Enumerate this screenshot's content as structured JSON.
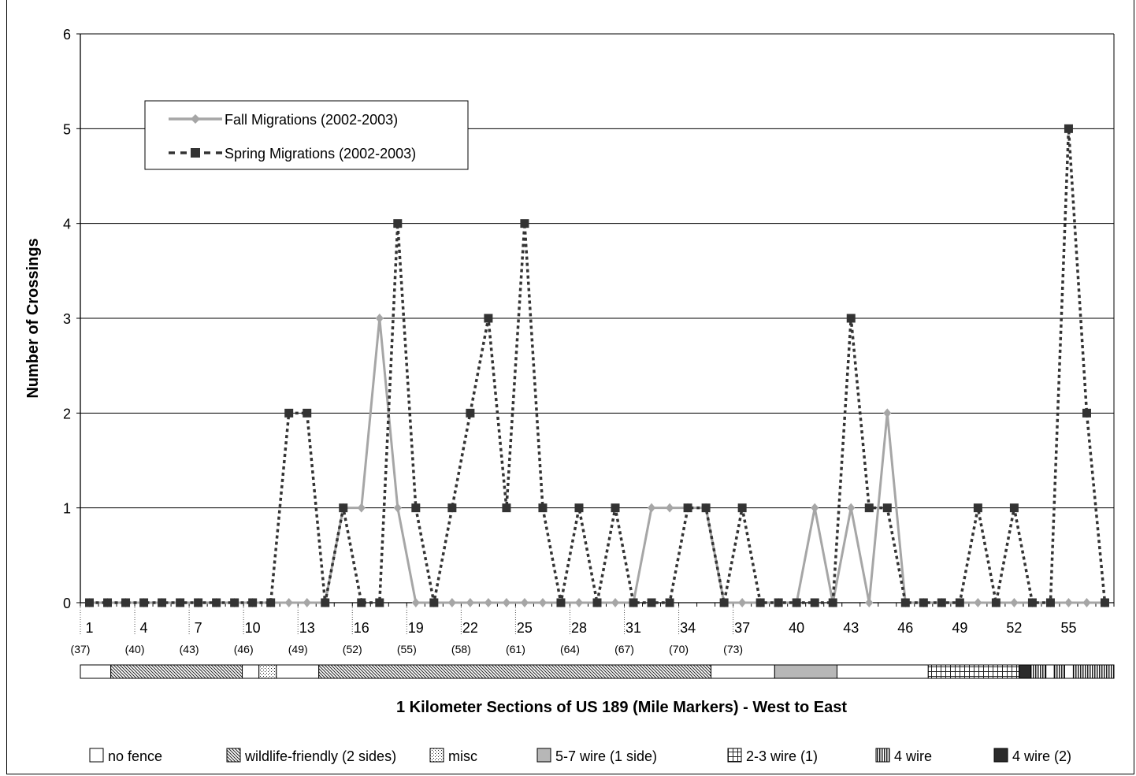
{
  "chart_data": {
    "type": "line",
    "title": "",
    "xlabel": "1 Kilometer Sections of US 189 (Mile Markers) - West to East",
    "ylabel": "Number of Crossings",
    "ylim": [
      0,
      6
    ],
    "yticks": [
      "0",
      "1",
      "2",
      "3",
      "4",
      "5",
      "6"
    ],
    "grid": "horizontal",
    "legend_position": "top-left",
    "x": [
      1,
      2,
      3,
      4,
      5,
      6,
      7,
      8,
      9,
      10,
      11,
      12,
      13,
      14,
      15,
      16,
      17,
      18,
      19,
      20,
      21,
      22,
      23,
      24,
      25,
      26,
      27,
      28,
      29,
      30,
      31,
      32,
      33,
      34,
      35,
      36,
      37,
      38,
      39,
      40,
      41,
      42,
      43,
      44,
      45,
      46,
      47,
      48,
      49,
      50,
      51,
      52,
      53,
      54,
      55,
      56,
      57
    ],
    "xtick_labels": [
      "1",
      "4",
      "7",
      "10",
      "13",
      "16",
      "19",
      "22",
      "25",
      "28",
      "31",
      "34",
      "37",
      "40",
      "43",
      "46",
      "49",
      "52",
      "55"
    ],
    "mile_marker_labels": [
      "(37)",
      "(40)",
      "(43)",
      "(46)",
      "(49)",
      "(52)",
      "(55)",
      "(58)",
      "(61)",
      "(64)",
      "(67)",
      "(70)",
      "(73)"
    ],
    "series": [
      {
        "name": "Fall Migrations (2002-2003)",
        "color": "#a6a6a6",
        "style": "solid",
        "marker": "diamond",
        "values": [
          0,
          0,
          0,
          0,
          0,
          0,
          0,
          0,
          0,
          0,
          0,
          0,
          0,
          0,
          1,
          1,
          3,
          1,
          0,
          0,
          0,
          0,
          0,
          0,
          0,
          0,
          0,
          0,
          0,
          0,
          0,
          1,
          1,
          1,
          1,
          0,
          0,
          0,
          0,
          0,
          1,
          0,
          1,
          0,
          2,
          0,
          0,
          0,
          0,
          0,
          0,
          0,
          0,
          0,
          0,
          0,
          0
        ]
      },
      {
        "name": "Spring Migrations (2002-2003)",
        "color": "#333333",
        "style": "dotted",
        "marker": "square",
        "values": [
          0,
          0,
          0,
          0,
          0,
          0,
          0,
          0,
          0,
          0,
          0,
          2,
          2,
          0,
          1,
          0,
          0,
          4,
          1,
          0,
          1,
          2,
          3,
          1,
          4,
          1,
          0,
          1,
          0,
          1,
          0,
          0,
          0,
          1,
          1,
          0,
          1,
          0,
          0,
          0,
          0,
          0,
          3,
          1,
          1,
          0,
          0,
          0,
          0,
          1,
          0,
          1,
          0,
          0,
          5,
          2,
          0
        ]
      }
    ],
    "fence_segments": [
      {
        "type": "no fence",
        "from": 0,
        "to": 1.68
      },
      {
        "type": "wildlife-friendly",
        "from": 1.68,
        "to": 8.93
      },
      {
        "type": "no fence",
        "from": 8.93,
        "to": 9.85
      },
      {
        "type": "misc",
        "from": 9.85,
        "to": 10.81
      },
      {
        "type": "no fence",
        "from": 10.81,
        "to": 13.15
      },
      {
        "type": "wildlife-friendly",
        "from": 13.15,
        "to": 34.78
      },
      {
        "type": "no fence",
        "from": 34.78,
        "to": 38.29
      },
      {
        "type": "5-7 wire",
        "from": 38.29,
        "to": 41.73
      },
      {
        "type": "no fence",
        "from": 41.73,
        "to": 46.76
      },
      {
        "type": "2-3 wire",
        "from": 46.76,
        "to": 51.77
      },
      {
        "type": "4 wire (2)",
        "from": 51.77,
        "to": 52.42
      },
      {
        "type": "4 wire",
        "from": 52.42,
        "to": 53.25
      },
      {
        "type": "no fence",
        "from": 53.25,
        "to": 53.71
      },
      {
        "type": "4 wire",
        "from": 53.71,
        "to": 54.28
      },
      {
        "type": "no fence",
        "from": 54.28,
        "to": 54.76
      },
      {
        "type": "4 wire",
        "from": 54.76,
        "to": 57
      }
    ],
    "fence_legend": [
      {
        "type": "no fence",
        "label": "no fence"
      },
      {
        "type": "wildlife-friendly",
        "label": "wildlife-friendly (2 sides)"
      },
      {
        "type": "misc",
        "label": "misc"
      },
      {
        "type": "5-7 wire",
        "label": "5-7 wire (1 side)"
      },
      {
        "type": "2-3 wire",
        "label": "2-3 wire (1)"
      },
      {
        "type": "4 wire",
        "label": "4 wire"
      },
      {
        "type": "4 wire (2)",
        "label": "4 wire (2)"
      }
    ]
  }
}
